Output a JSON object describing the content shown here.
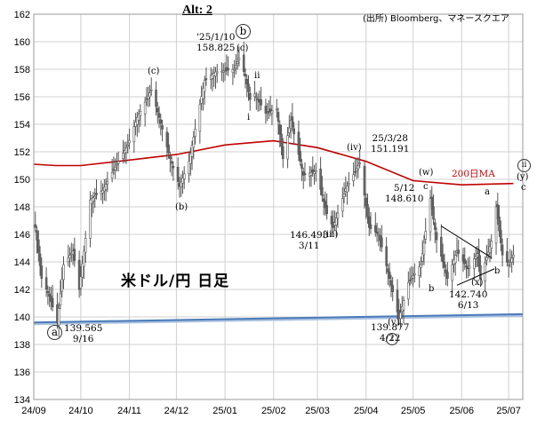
{
  "header": {
    "title": "Alt: 2",
    "source": "(出所) Bloomberg、マネースクエア",
    "pair_label": "米ドル/円 日足"
  },
  "chart_data": {
    "type": "candlestick",
    "title": "Alt: 2",
    "ylim": [
      134,
      162
    ],
    "yticks": [
      134,
      136,
      138,
      140,
      142,
      144,
      146,
      148,
      150,
      152,
      154,
      156,
      158,
      160,
      162
    ],
    "x_range": [
      "2024-09-01",
      "2025-07-10"
    ],
    "xticks": [
      {
        "date": "2024-09-01",
        "label": "24/09"
      },
      {
        "date": "2024-10-01",
        "label": "24/10"
      },
      {
        "date": "2024-11-01",
        "label": "24/11"
      },
      {
        "date": "2024-12-01",
        "label": "24/12"
      },
      {
        "date": "2025-01-01",
        "label": "25/01"
      },
      {
        "date": "2025-02-01",
        "label": "25/02"
      },
      {
        "date": "2025-03-01",
        "label": "25/03"
      },
      {
        "date": "2025-04-01",
        "label": "25/04"
      },
      {
        "date": "2025-05-01",
        "label": "25/05"
      },
      {
        "date": "2025-06-01",
        "label": "25/06"
      },
      {
        "date": "2025-07-01",
        "label": "25/07"
      }
    ],
    "price_anchors": [
      {
        "date": "2024-09-02",
        "price": 146.5
      },
      {
        "date": "2024-09-06",
        "price": 142.8
      },
      {
        "date": "2024-09-11",
        "price": 141.5
      },
      {
        "date": "2024-09-16",
        "price": 139.565
      },
      {
        "date": "2024-09-20",
        "price": 143.8
      },
      {
        "date": "2024-09-26",
        "price": 144.8
      },
      {
        "date": "2024-09-30",
        "price": 142.0
      },
      {
        "date": "2024-10-07",
        "price": 148.5
      },
      {
        "date": "2024-10-15",
        "price": 149.2
      },
      {
        "date": "2024-10-21",
        "price": 150.5
      },
      {
        "date": "2024-10-31",
        "price": 152.5
      },
      {
        "date": "2024-11-06",
        "price": 154.5
      },
      {
        "date": "2024-11-15",
        "price": 156.5
      },
      {
        "date": "2024-11-20",
        "price": 154.5
      },
      {
        "date": "2024-11-27",
        "price": 151.5
      },
      {
        "date": "2024-12-03",
        "price": 149.5
      },
      {
        "date": "2024-12-09",
        "price": 151.3
      },
      {
        "date": "2024-12-19",
        "price": 157.2
      },
      {
        "date": "2024-12-26",
        "price": 157.8
      },
      {
        "date": "2025-01-07",
        "price": 158.0
      },
      {
        "date": "2025-01-10",
        "price": 158.825
      },
      {
        "date": "2025-01-14",
        "price": 157.5
      },
      {
        "date": "2025-01-17",
        "price": 155.8
      },
      {
        "date": "2025-01-20",
        "price": 156.2
      },
      {
        "date": "2025-01-27",
        "price": 154.8
      },
      {
        "date": "2025-02-03",
        "price": 155.1
      },
      {
        "date": "2025-02-07",
        "price": 151.5
      },
      {
        "date": "2025-02-12",
        "price": 154.3
      },
      {
        "date": "2025-02-20",
        "price": 150.3
      },
      {
        "date": "2025-02-28",
        "price": 150.6
      },
      {
        "date": "2025-03-07",
        "price": 147.5
      },
      {
        "date": "2025-03-11",
        "price": 146.493
      },
      {
        "date": "2025-03-19",
        "price": 149.3
      },
      {
        "date": "2025-03-28",
        "price": 151.191
      },
      {
        "date": "2025-04-03",
        "price": 146.5
      },
      {
        "date": "2025-04-09",
        "price": 146.0
      },
      {
        "date": "2025-04-16",
        "price": 142.8
      },
      {
        "date": "2025-04-22",
        "price": 139.877
      },
      {
        "date": "2025-04-28",
        "price": 142.5
      },
      {
        "date": "2025-05-06",
        "price": 143.8
      },
      {
        "date": "2025-05-12",
        "price": 148.61
      },
      {
        "date": "2025-05-16",
        "price": 145.6
      },
      {
        "date": "2025-05-23",
        "price": 142.8
      },
      {
        "date": "2025-05-29",
        "price": 144.8
      },
      {
        "date": "2025-06-05",
        "price": 143.5
      },
      {
        "date": "2025-06-11",
        "price": 144.6
      },
      {
        "date": "2025-06-13",
        "price": 142.74
      },
      {
        "date": "2025-06-20",
        "price": 145.5
      },
      {
        "date": "2025-06-23",
        "price": 148.0
      },
      {
        "date": "2025-06-27",
        "price": 144.5
      },
      {
        "date": "2025-07-01",
        "price": 143.8
      },
      {
        "date": "2025-07-04",
        "price": 144.5
      }
    ],
    "ma200": {
      "name": "200日MA",
      "color": "#c00000",
      "points": [
        {
          "date": "2024-09-01",
          "value": 151.1
        },
        {
          "date": "2024-09-15",
          "value": 151.0
        },
        {
          "date": "2024-10-01",
          "value": 151.0
        },
        {
          "date": "2024-11-01",
          "value": 151.4
        },
        {
          "date": "2024-12-01",
          "value": 151.8
        },
        {
          "date": "2025-01-01",
          "value": 152.5
        },
        {
          "date": "2025-02-01",
          "value": 152.8
        },
        {
          "date": "2025-03-01",
          "value": 152.3
        },
        {
          "date": "2025-04-01",
          "value": 151.3
        },
        {
          "date": "2025-05-01",
          "value": 149.9
        },
        {
          "date": "2025-06-01",
          "value": 149.6
        },
        {
          "date": "2025-07-04",
          "value": 149.7
        }
      ]
    },
    "support_line": {
      "color": "#4a7ab8",
      "points": [
        {
          "date": "2024-09-01",
          "value": 139.6
        },
        {
          "date": "2025-07-10",
          "value": 140.2
        }
      ]
    },
    "triangle_lines": [
      {
        "points": [
          {
            "date": "2025-05-19",
            "value": 146.6
          },
          {
            "date": "2025-06-20",
            "value": 144.3
          }
        ]
      },
      {
        "points": [
          {
            "date": "2025-05-29",
            "value": 142.3
          },
          {
            "date": "2025-06-22",
            "value": 143.5
          }
        ]
      }
    ],
    "annotations": [
      {
        "text": [
          "139.565",
          "9/16"
        ]
      },
      {
        "text": [
          "'25/1/10",
          "158.825"
        ]
      },
      {
        "text": [
          "146.493",
          "3/11"
        ]
      },
      {
        "text": [
          "25/3/28",
          "151.191"
        ]
      },
      {
        "text": [
          "5/12",
          "148.610"
        ]
      },
      {
        "text": [
          "139.877",
          "4/22"
        ]
      },
      {
        "text": [
          "142.740",
          "6/13"
        ]
      }
    ],
    "wave_labels": [
      "(c)",
      "(b)",
      "(c)",
      "ii",
      "i",
      "(iv)",
      "(iii)",
      "(w)",
      "c",
      "a",
      "b",
      "b",
      "(x)",
      "(v)",
      "(y)",
      "c"
    ],
    "circled_labels": [
      "a",
      "b",
      "i",
      "ii"
    ]
  }
}
